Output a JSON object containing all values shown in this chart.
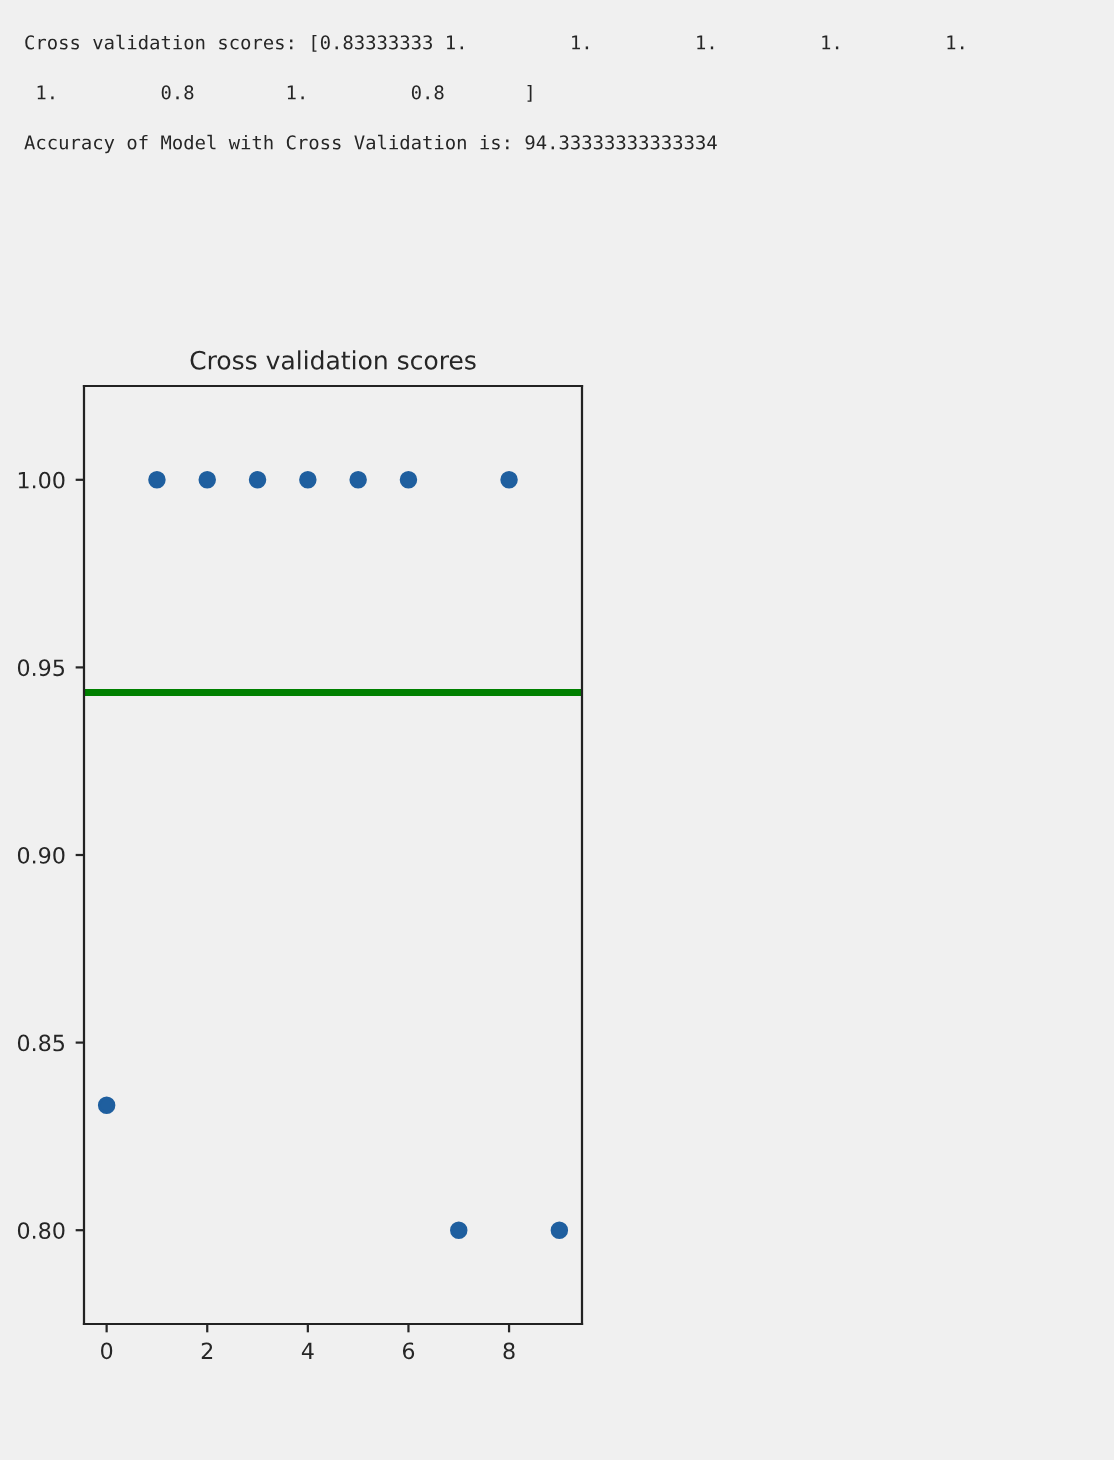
{
  "chart_data": {
    "type": "scatter",
    "title": "Cross validation scores",
    "annotations": [
      "Cross validation scores: [0.83333333 1.         1.         1.         1.         1.",
      " 1.         0.8        1.         0.8       ]",
      "Accuracy of Model with Cross Validation is: 94.33333333333334"
    ],
    "x": [
      0,
      1,
      2,
      3,
      4,
      5,
      6,
      7,
      8,
      9
    ],
    "series": [
      {
        "color": "#1f5f9f",
        "values": [
          0.8333,
          1.0,
          1.0,
          1.0,
          1.0,
          1.0,
          1.0,
          0.8,
          1.0,
          0.8
        ]
      }
    ],
    "ref_lines": [
      {
        "axis": "y",
        "value": 0.9433,
        "label": null,
        "color": "#008000",
        "line_style": "solid"
      }
    ],
    "xlim": [
      -0.45,
      9.45
    ],
    "xticks": [
      0,
      2,
      4,
      6,
      8
    ],
    "ylim": [
      0.775,
      1.025
    ],
    "yticks": [
      {
        "value": 0.8,
        "label": "0.80"
      },
      {
        "value": 0.85,
        "label": "0.85"
      },
      {
        "value": 0.9,
        "label": "0.90"
      },
      {
        "value": 0.95,
        "label": "0.95"
      },
      {
        "value": 1.0,
        "label": "1.00"
      }
    ],
    "marker": "circle",
    "grid": false,
    "legend": false
  }
}
